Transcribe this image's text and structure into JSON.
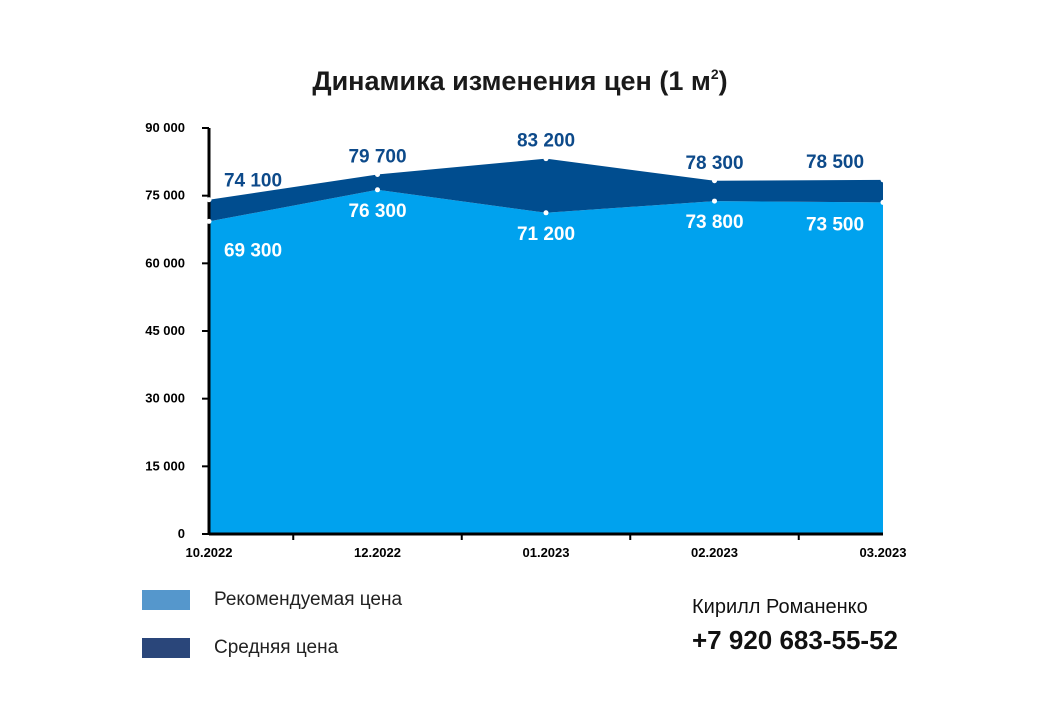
{
  "chart_data": {
    "type": "area",
    "title": "Динамика изменения цен (1 м",
    "title_superscript": "2",
    "title_suffix": ")",
    "categories": [
      "10.2022",
      "12.2022",
      "01.2023",
      "02.2023",
      "03.2023"
    ],
    "series": [
      {
        "name": "Рекомендуемая цена",
        "values": [
          69300,
          76300,
          71200,
          73800,
          73500
        ],
        "color": "#00a2ee",
        "labels": [
          "69 300",
          "76 300",
          "71 200",
          "73 800",
          "73 500"
        ]
      },
      {
        "name": "Средняя цена",
        "values": [
          74100,
          79700,
          83200,
          78300,
          78500
        ],
        "color": "#004d8f",
        "labels": [
          "74 100",
          "79 700",
          "83 200",
          "78 300",
          "78 500"
        ]
      }
    ],
    "y_ticks": [
      0,
      15000,
      30000,
      45000,
      60000,
      75000,
      90000
    ],
    "y_tick_labels": [
      "0",
      "15 000",
      "30 000",
      "45 000",
      "60 000",
      "75 000",
      "90 000"
    ],
    "ylim": [
      0,
      90000
    ],
    "grid": false,
    "legend_position": "bottom-left"
  },
  "legend": [
    {
      "label": "Рекомендуемая цена",
      "color": "#5597cc"
    },
    {
      "label": "Средняя цена",
      "color": "#2a467a"
    }
  ],
  "contact": {
    "name": "Кирилл Романенко",
    "phone": "+7 920 683-55-52"
  }
}
